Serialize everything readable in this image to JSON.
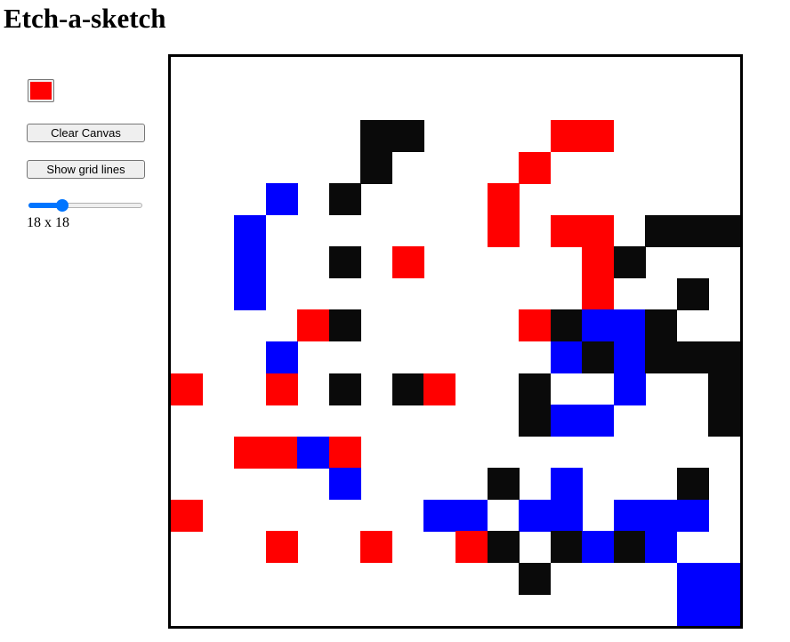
{
  "header": {
    "title": "Etch-a-sketch"
  },
  "controls": {
    "current_color": "#ff0000",
    "clear_label": "Clear Canvas",
    "grid_lines_label": "Show grid lines",
    "slider": {
      "value": 18,
      "min": 1,
      "max": 64
    },
    "grid_size_label": "18 x 18"
  },
  "palette": {
    "R": "#ff0000",
    "B": "#0000ff",
    "K": "#0a0a0a"
  },
  "canvas": {
    "grid_size": 18,
    "rows": [
      "..................",
      "..................",
      "......KK....RR....",
      "......K....R......",
      "...B.K....R.......",
      "..B.......R.RR.KKK",
      "..B..K.R.....RK...",
      "..B..........R..K.",
      "....RK.....RKBBK..",
      "...B........BKBKKK",
      "R..R.K.KR..K..B..K",
      "...........KBB...K",
      "..RRBR............",
      ".....B....K.B...K.",
      "R.......BB.BB.BBB.",
      "...R..R..RK.KBKB..",
      "...........K....BB",
      "................BB"
    ]
  }
}
